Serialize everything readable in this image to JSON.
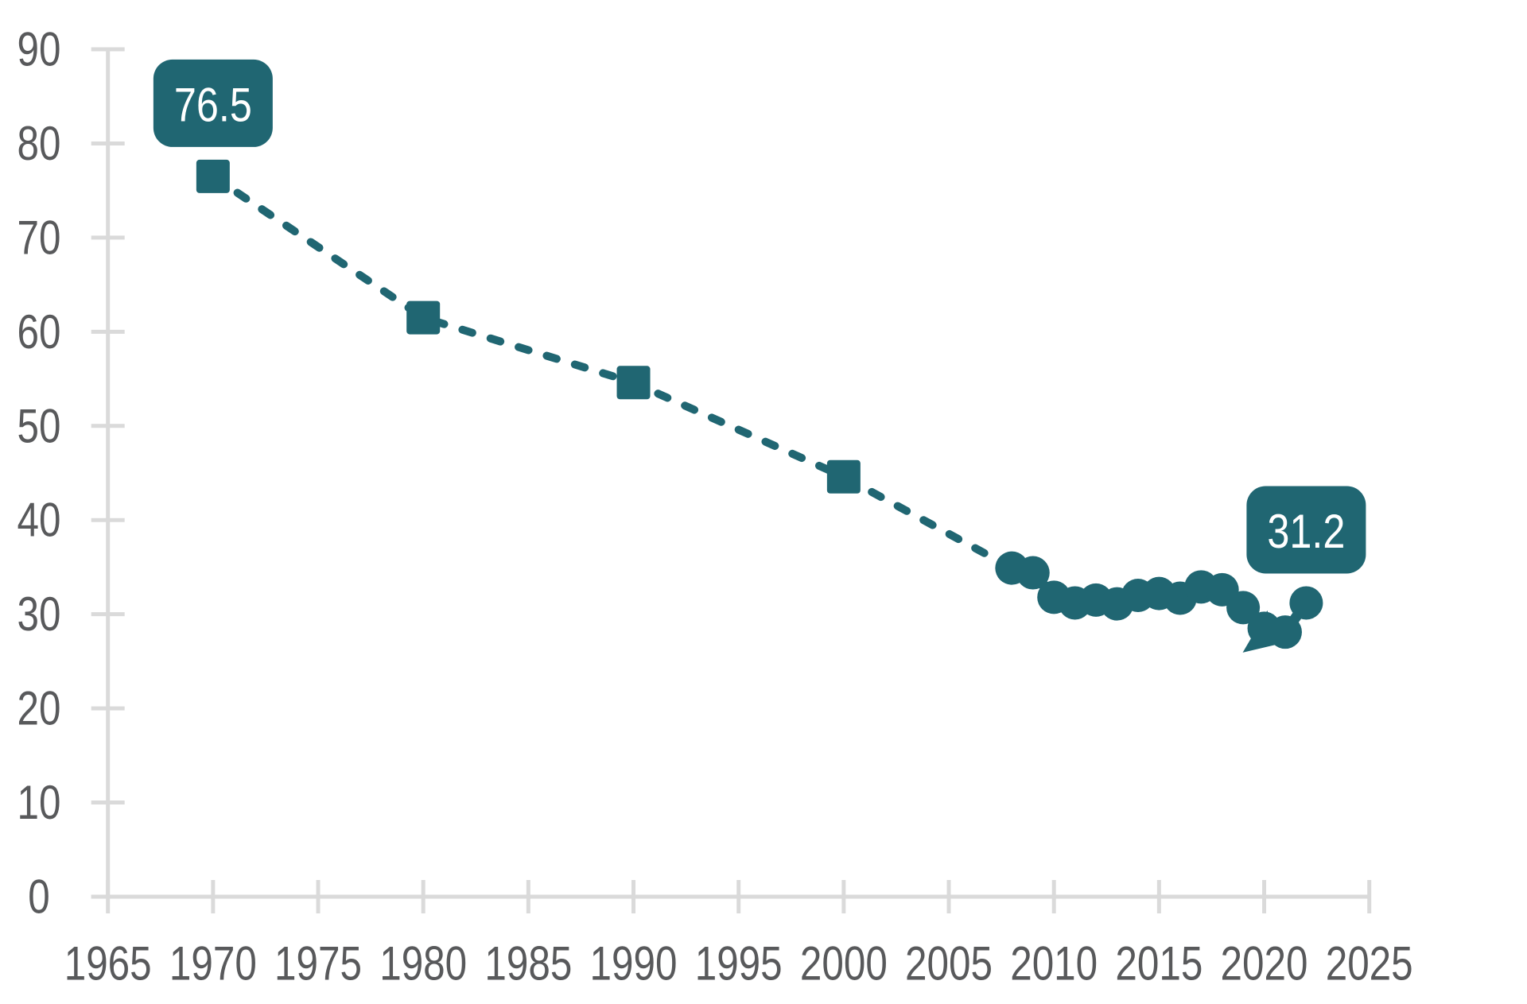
{
  "chart_data": {
    "type": "line",
    "title": "",
    "xlabel": "",
    "ylabel": "",
    "grid": "off",
    "legend": "none",
    "x_axis": {
      "min": 1965,
      "max": 2025,
      "tick_step": 5,
      "ticks": [
        1965,
        1970,
        1975,
        1980,
        1985,
        1990,
        1995,
        2000,
        2005,
        2010,
        2015,
        2020,
        2025
      ]
    },
    "y_axis": {
      "min": 0,
      "max": 90,
      "tick_step": 10,
      "ticks": [
        0,
        10,
        20,
        30,
        40,
        50,
        60,
        70,
        80,
        90
      ]
    },
    "series": [
      {
        "name": "decadal-1970-2000",
        "marker": "square",
        "line_style": "dashed",
        "points": [
          {
            "year": 1970,
            "value": 76.5
          },
          {
            "year": 1980,
            "value": 61.5
          },
          {
            "year": 1990,
            "value": 54.6
          },
          {
            "year": 2000,
            "value": 44.6
          }
        ]
      },
      {
        "name": "annual-2008-2022",
        "marker": "circle",
        "line_style": "solid",
        "points": [
          {
            "year": 2008,
            "value": 34.9
          },
          {
            "year": 2009,
            "value": 34.4
          },
          {
            "year": 2010,
            "value": 31.8
          },
          {
            "year": 2011,
            "value": 31.2
          },
          {
            "year": 2012,
            "value": 31.5
          },
          {
            "year": 2013,
            "value": 31.1
          },
          {
            "year": 2014,
            "value": 32.0
          },
          {
            "year": 2015,
            "value": 32.2
          },
          {
            "year": 2016,
            "value": 31.7
          },
          {
            "year": 2017,
            "value": 32.9
          },
          {
            "year": 2018,
            "value": 32.6
          },
          {
            "year": 2019,
            "value": 30.7
          },
          {
            "year": 2020,
            "value": 28.5
          },
          {
            "year": 2021,
            "value": 28.1
          },
          {
            "year": 2022,
            "value": 31.2
          }
        ]
      }
    ],
    "connector_between_series": {
      "style": "dashed",
      "from_year": 2000,
      "to_year": 2008
    },
    "annotations": {
      "first_point_callout": {
        "label": "76.5",
        "year": 1970,
        "value": 76.5
      },
      "last_point_callout": {
        "label": "31.2",
        "year": 2022,
        "value": 31.2
      },
      "dip_arrow": {
        "year": 2020,
        "value": 28.5,
        "direction": "down-left"
      }
    },
    "colors": {
      "accent": "#206672",
      "axis_line": "#DADADA",
      "tick_label_text": "#58595B",
      "callout_text": "#FFFFFF",
      "background": "#FFFFFF"
    }
  }
}
